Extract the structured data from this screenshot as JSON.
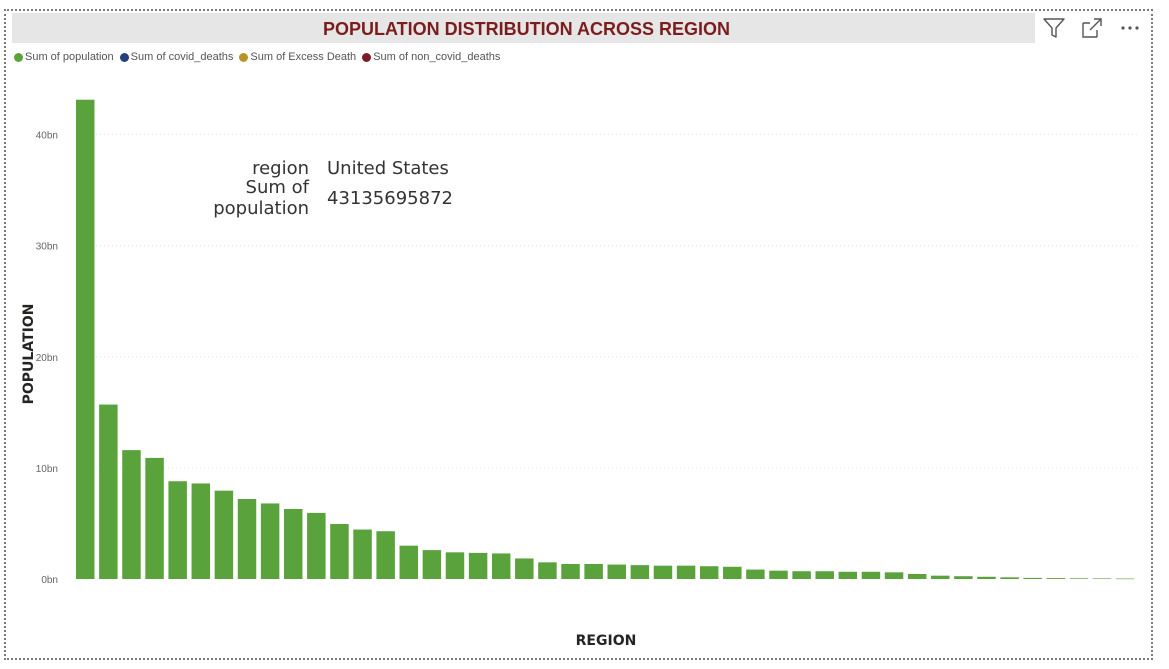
{
  "header": {
    "title": "POPULATION DISTRIBUTION ACROSS REGION",
    "title_color": "#7b1d1d",
    "tools": [
      {
        "icon": "filter-icon"
      },
      {
        "icon": "focus-mode-icon"
      },
      {
        "icon": "more-options-icon"
      }
    ]
  },
  "legend": [
    {
      "label": "Sum of population",
      "color": "#5aa33c"
    },
    {
      "label": "Sum of covid_deaths",
      "color": "#253f7a"
    },
    {
      "label": "Sum of Excess Death",
      "color": "#b89325"
    },
    {
      "label": "Sum of non_covid_deaths",
      "color": "#7b1d25"
    }
  ],
  "tooltip": {
    "rows": [
      {
        "key": "region",
        "value": "United States"
      },
      {
        "key": "Sum of population",
        "value": "43135695872"
      }
    ]
  },
  "chart_data": {
    "type": "bar",
    "xlabel": "REGION",
    "ylabel": "POPULATION",
    "ylim": [
      0,
      43200000000
    ],
    "yticks": [
      {
        "value": 0,
        "label": "0bn"
      },
      {
        "value": 10000000000,
        "label": "10bn"
      },
      {
        "value": 20000000000,
        "label": "20bn"
      },
      {
        "value": 30000000000,
        "label": "30bn"
      },
      {
        "value": 40000000000,
        "label": "40bn"
      }
    ],
    "grid": true,
    "bar_color": "#5aa33c",
    "values": [
      43135695872,
      15700000000,
      11600000000,
      10900000000,
      8800000000,
      8600000000,
      7950000000,
      7200000000,
      6800000000,
      6300000000,
      5950000000,
      4950000000,
      4450000000,
      4300000000,
      3000000000,
      2600000000,
      2400000000,
      2350000000,
      2300000000,
      1850000000,
      1500000000,
      1350000000,
      1350000000,
      1300000000,
      1250000000,
      1200000000,
      1200000000,
      1150000000,
      1100000000,
      850000000,
      750000000,
      700000000,
      700000000,
      650000000,
      650000000,
      600000000,
      450000000,
      300000000,
      250000000,
      200000000,
      150000000,
      100000000,
      80000000,
      60000000,
      50000000,
      40000000
    ]
  }
}
